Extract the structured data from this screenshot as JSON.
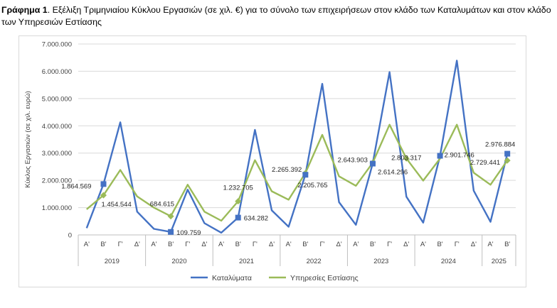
{
  "caption": {
    "bold": "Γράφημα 1",
    "text": ". Εξέλιξη Τριμηνιαίου Κύκλου Εργασιών (σε χιλ. €) για το σύνολο των επιχειρήσεων στον κλάδο των Καταλυμάτων και στον κλάδο των Υπηρεσιών Εστίασης"
  },
  "colors": {
    "series1": "#4472c4",
    "series2": "#9bbb59"
  },
  "chart_data": {
    "type": "line",
    "ylabel": "Κύκλος Εργασιών (σε χιλ. ευρώ)",
    "ylim": [
      0,
      7000000
    ],
    "yticks": [
      "0",
      "1.000.000",
      "2.000.000",
      "3.000.000",
      "4.000.000",
      "5.000.000",
      "6.000.000",
      "7.000.000"
    ],
    "quarter_labels": [
      "Α'",
      "Β'",
      "Γ'",
      "Δ'",
      "Α'",
      "Β'",
      "Γ'",
      "Δ'",
      "Α'",
      "Β'",
      "Γ'",
      "Δ'",
      "Α'",
      "Β'",
      "Γ'",
      "Δ'",
      "Α'",
      "Β'",
      "Γ'",
      "Δ'",
      "Α'",
      "Β'",
      "Γ'",
      "Δ'",
      "Α'",
      "Β'"
    ],
    "years": [
      {
        "label": "2019",
        "count": 4
      },
      {
        "label": "2020",
        "count": 4
      },
      {
        "label": "2021",
        "count": 4
      },
      {
        "label": "2022",
        "count": 4
      },
      {
        "label": "2023",
        "count": 4
      },
      {
        "label": "2024",
        "count": 4
      },
      {
        "label": "2025",
        "count": 2
      }
    ],
    "series": [
      {
        "name": "Καταλύματα",
        "values": [
          250000,
          1864569,
          4130000,
          850000,
          220000,
          109759,
          1660000,
          430000,
          80000,
          634282,
          3850000,
          900000,
          300000,
          2205765,
          5540000,
          1200000,
          370000,
          2614296,
          5970000,
          1400000,
          450000,
          2901746,
          6390000,
          1620000,
          480000,
          2976884
        ]
      },
      {
        "name": "Υπηρεσίες Εστίασης",
        "values": [
          940000,
          1454544,
          2380000,
          1410000,
          1000000,
          684615,
          1840000,
          850000,
          520000,
          1232705,
          2740000,
          1600000,
          1290000,
          2265392,
          3670000,
          2150000,
          1800000,
          2643903,
          4040000,
          2803317,
          1990000,
          2800000,
          4040000,
          2280000,
          1840000,
          2729441
        ]
      }
    ],
    "data_labels": [
      {
        "series": 0,
        "index": 1,
        "text": "1.864.569"
      },
      {
        "series": 1,
        "index": 1,
        "text": "1.454.544"
      },
      {
        "series": 1,
        "index": 5,
        "text": "684.615"
      },
      {
        "series": 0,
        "index": 5,
        "text": "109.759"
      },
      {
        "series": 1,
        "index": 9,
        "text": "1.232.705"
      },
      {
        "series": 0,
        "index": 9,
        "text": "634.282"
      },
      {
        "series": 1,
        "index": 13,
        "text": "2.265.392"
      },
      {
        "series": 0,
        "index": 13,
        "text": "2.205.765"
      },
      {
        "series": 1,
        "index": 17,
        "text": "2.643.903"
      },
      {
        "series": 0,
        "index": 17,
        "text": "2.614.296"
      },
      {
        "series": 1,
        "index": 19,
        "text": "2.803.317"
      },
      {
        "series": 0,
        "index": 21,
        "text": "2.901.746"
      },
      {
        "series": 0,
        "index": 25,
        "text": "2.976.884"
      },
      {
        "series": 1,
        "index": 25,
        "text": "2.729.441"
      }
    ],
    "legend": [
      "Καταλύματα",
      "Υπηρεσίες Εστίασης"
    ],
    "legend_position": "bottom"
  }
}
